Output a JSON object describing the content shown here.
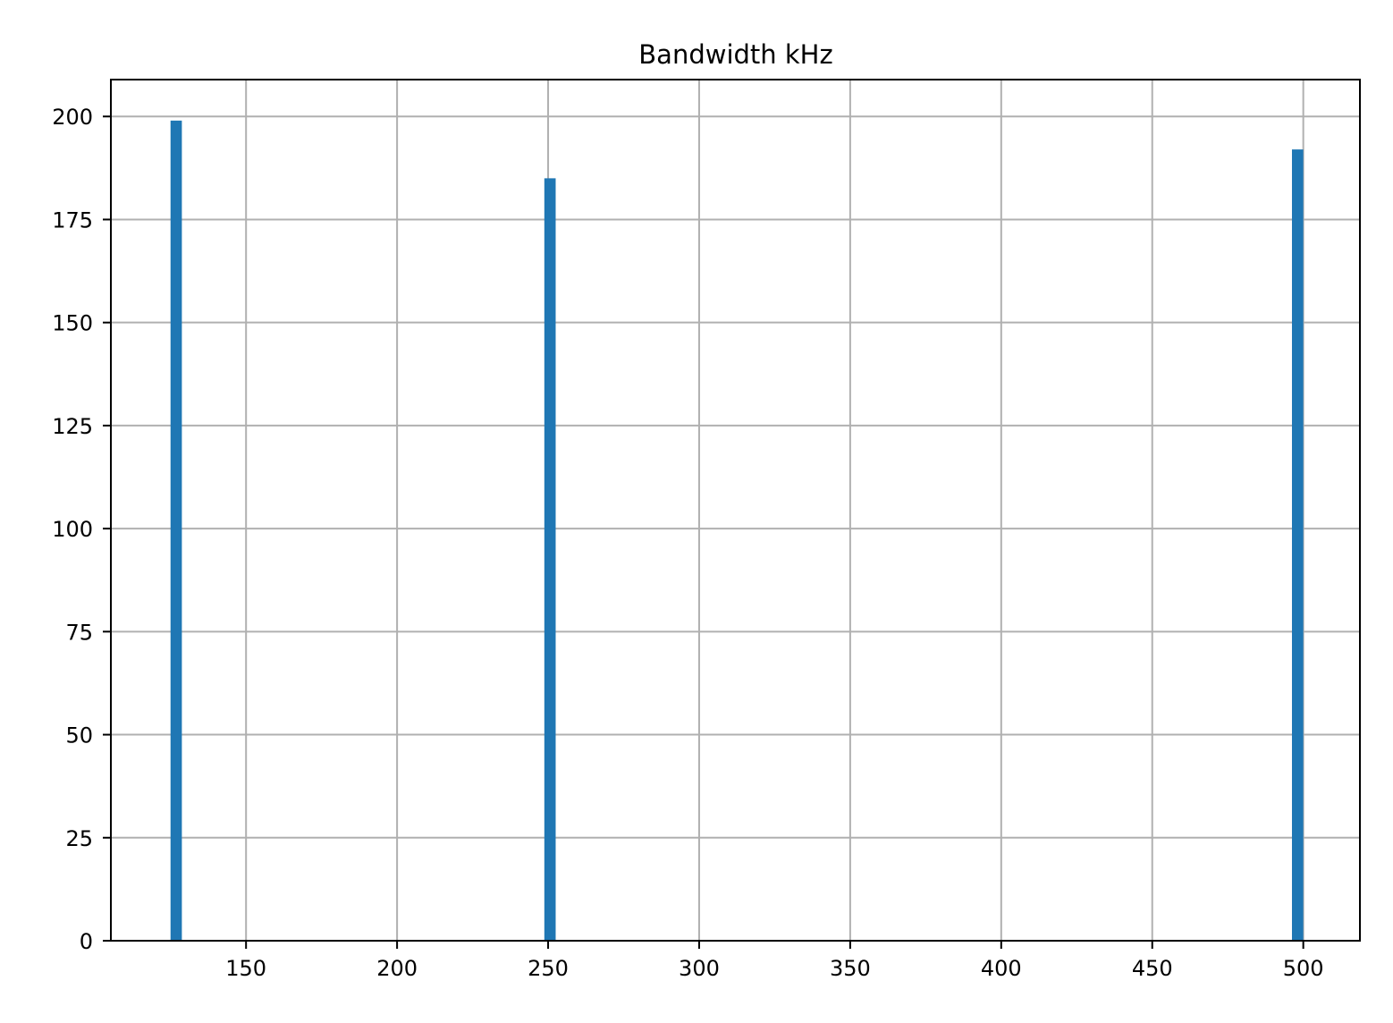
{
  "chart_data": {
    "type": "bar",
    "title": "Bandwidth kHz",
    "xlabel": "",
    "ylabel": "",
    "xlim": [
      105.25,
      518.75
    ],
    "ylim": [
      0,
      208.95
    ],
    "xticks": [
      150,
      200,
      250,
      300,
      350,
      400,
      450,
      500
    ],
    "yticks": [
      0,
      25,
      50,
      75,
      100,
      125,
      150,
      175,
      200
    ],
    "bin_width": 3.75,
    "bars": [
      {
        "x_start": 125.0,
        "x_end": 128.75,
        "value": 199
      },
      {
        "x_start": 248.75,
        "x_end": 252.5,
        "value": 185
      },
      {
        "x_start": 496.25,
        "x_end": 500.0,
        "value": 192
      }
    ],
    "grid": true,
    "legend": "none",
    "bar_color": "#1f77b4",
    "grid_color": "#b0b0b0"
  }
}
